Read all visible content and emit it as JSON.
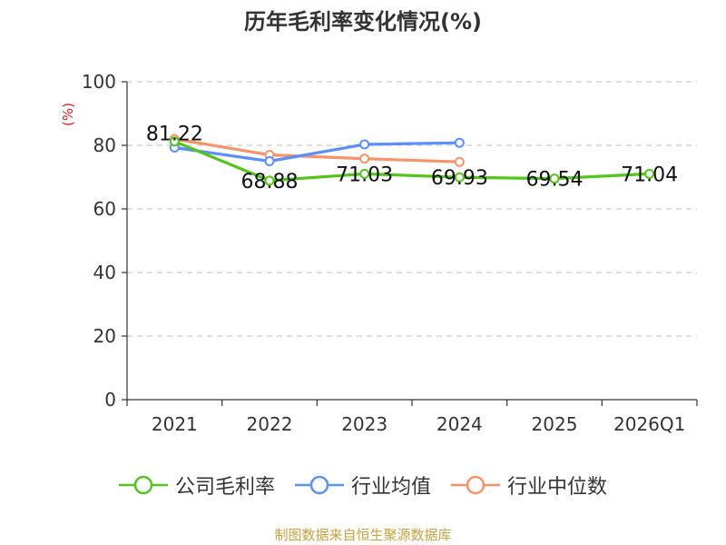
{
  "title": "历年毛利率变化情况(%)",
  "source": "制图数据来自恒生聚源数据库",
  "chart_data": {
    "type": "line",
    "categories": [
      "2021",
      "2022",
      "2023",
      "2024",
      "2025",
      "2026Q1"
    ],
    "ylabel": "(%)",
    "ylim": [
      0,
      100
    ],
    "yticks": [
      0,
      20,
      40,
      60,
      80,
      100
    ],
    "grid": true,
    "legend_position": "bottom",
    "series": [
      {
        "name": "公司毛利率",
        "color": "#52c41a",
        "values": [
          81.22,
          68.88,
          71.03,
          69.93,
          69.54,
          71.04
        ],
        "labels": [
          "81.22",
          "68.88",
          "71.03",
          "69.93",
          "69.54",
          "71.04"
        ]
      },
      {
        "name": "行业均值",
        "color": "#5b8ff9",
        "values": [
          79.3,
          75.0,
          80.3,
          80.8,
          null,
          null
        ]
      },
      {
        "name": "行业中位数",
        "color": "#f6936a",
        "values": [
          82.0,
          77.0,
          75.8,
          74.8,
          null,
          null
        ]
      }
    ]
  }
}
